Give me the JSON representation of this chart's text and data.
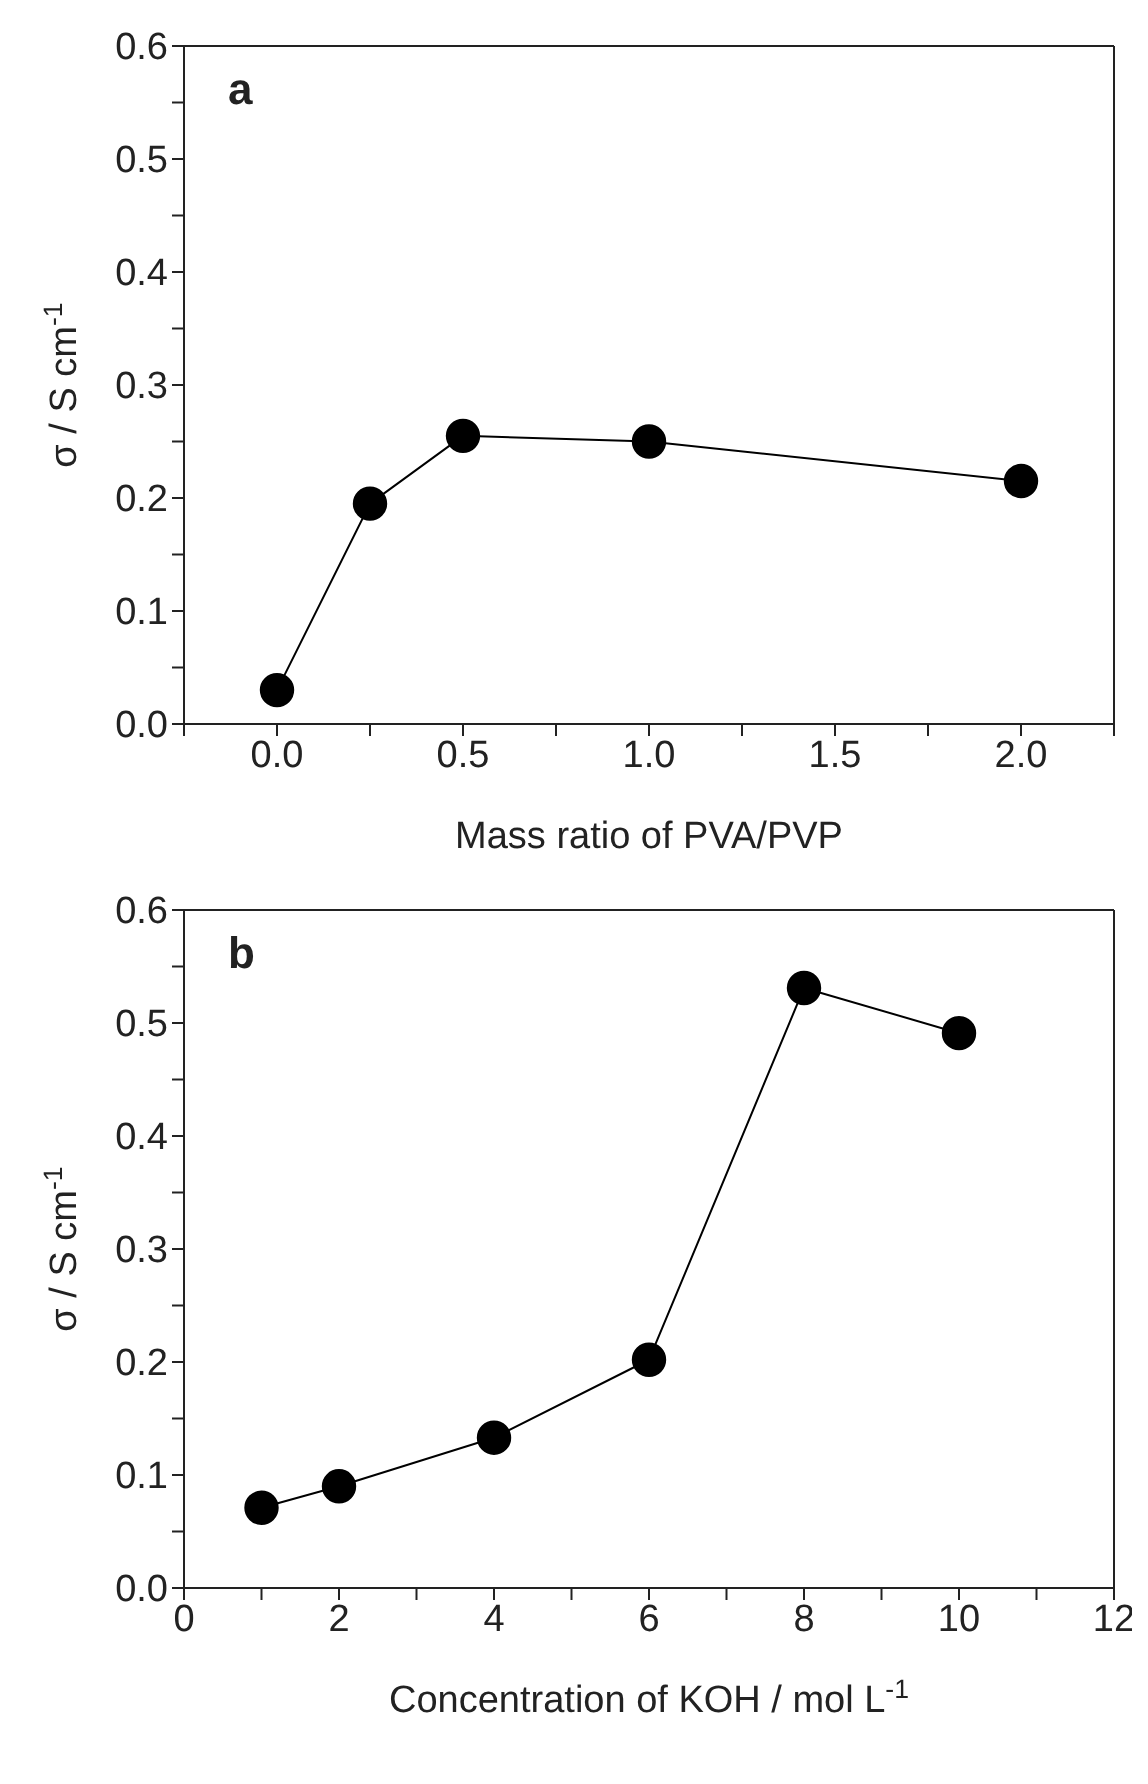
{
  "chart_data": [
    {
      "type": "line",
      "xlabel": "Mass ratio of PVA/PVP",
      "ylabel": "σ / S cm$^{-1}$",
      "annotations": [
        "a"
      ],
      "marker": "circle",
      "line_style": "solid",
      "grid": false,
      "legend": false,
      "x": [
        0,
        0.25,
        0.5,
        1,
        2
      ],
      "series": [
        {
          "color": "#000000",
          "values": [
            0.03,
            0.195,
            0.255,
            0.25,
            0.215
          ]
        }
      ],
      "xlim": [
        -0.25,
        2.25
      ],
      "xticks": [
        {
          "value": -0.25,
          "label": null
        },
        {
          "value": 0,
          "label": "0.0"
        },
        {
          "value": 0.25,
          "label": null
        },
        0.5,
        {
          "value": 0.75,
          "label": null
        },
        {
          "value": 1,
          "label": "1.0"
        },
        {
          "value": 1.25,
          "label": null
        },
        1.5,
        {
          "value": 1.75,
          "label": null
        },
        {
          "value": 2,
          "label": "2.0"
        },
        {
          "value": 2.25,
          "label": null
        }
      ],
      "ylim": [
        0,
        0.6
      ],
      "yticks": [
        {
          "value": 0,
          "label": "0.0"
        },
        {
          "value": 0.05,
          "label": null
        },
        0.1,
        {
          "value": 0.15,
          "label": null
        },
        0.2,
        {
          "value": 0.25,
          "label": null
        },
        0.3,
        {
          "value": 0.35,
          "label": null
        },
        0.4,
        {
          "value": 0.45,
          "label": null
        },
        0.5,
        {
          "value": 0.55,
          "label": null
        },
        0.6
      ]
    },
    {
      "type": "line",
      "xlabel": "Concentration of KOH / mol L$^{-1}$",
      "ylabel": "σ / S cm$^{-1}$",
      "annotations": [
        "b"
      ],
      "marker": "circle",
      "line_style": "solid",
      "grid": false,
      "legend": false,
      "x": [
        1,
        2,
        4,
        6,
        8,
        10
      ],
      "series": [
        {
          "color": "#000000",
          "values": [
            0.071,
            0.09,
            0.133,
            0.202,
            0.531,
            0.491
          ]
        }
      ],
      "xlim": [
        0,
        12
      ],
      "xticks": [
        0,
        {
          "value": 1,
          "label": null
        },
        2,
        {
          "value": 3,
          "label": null
        },
        4,
        {
          "value": 5,
          "label": null
        },
        6,
        {
          "value": 7,
          "label": null
        },
        8,
        {
          "value": 9,
          "label": null
        },
        10,
        {
          "value": 11,
          "label": null
        },
        12
      ],
      "ylim": [
        0,
        0.6
      ],
      "yticks": [
        {
          "value": 0,
          "label": "0.0"
        },
        {
          "value": 0.05,
          "label": null
        },
        0.1,
        {
          "value": 0.15,
          "label": null
        },
        0.2,
        {
          "value": 0.25,
          "label": null
        },
        0.3,
        {
          "value": 0.35,
          "label": null
        },
        0.4,
        {
          "value": 0.45,
          "label": null
        },
        0.5,
        {
          "value": 0.55,
          "label": null
        },
        0.6
      ]
    }
  ]
}
